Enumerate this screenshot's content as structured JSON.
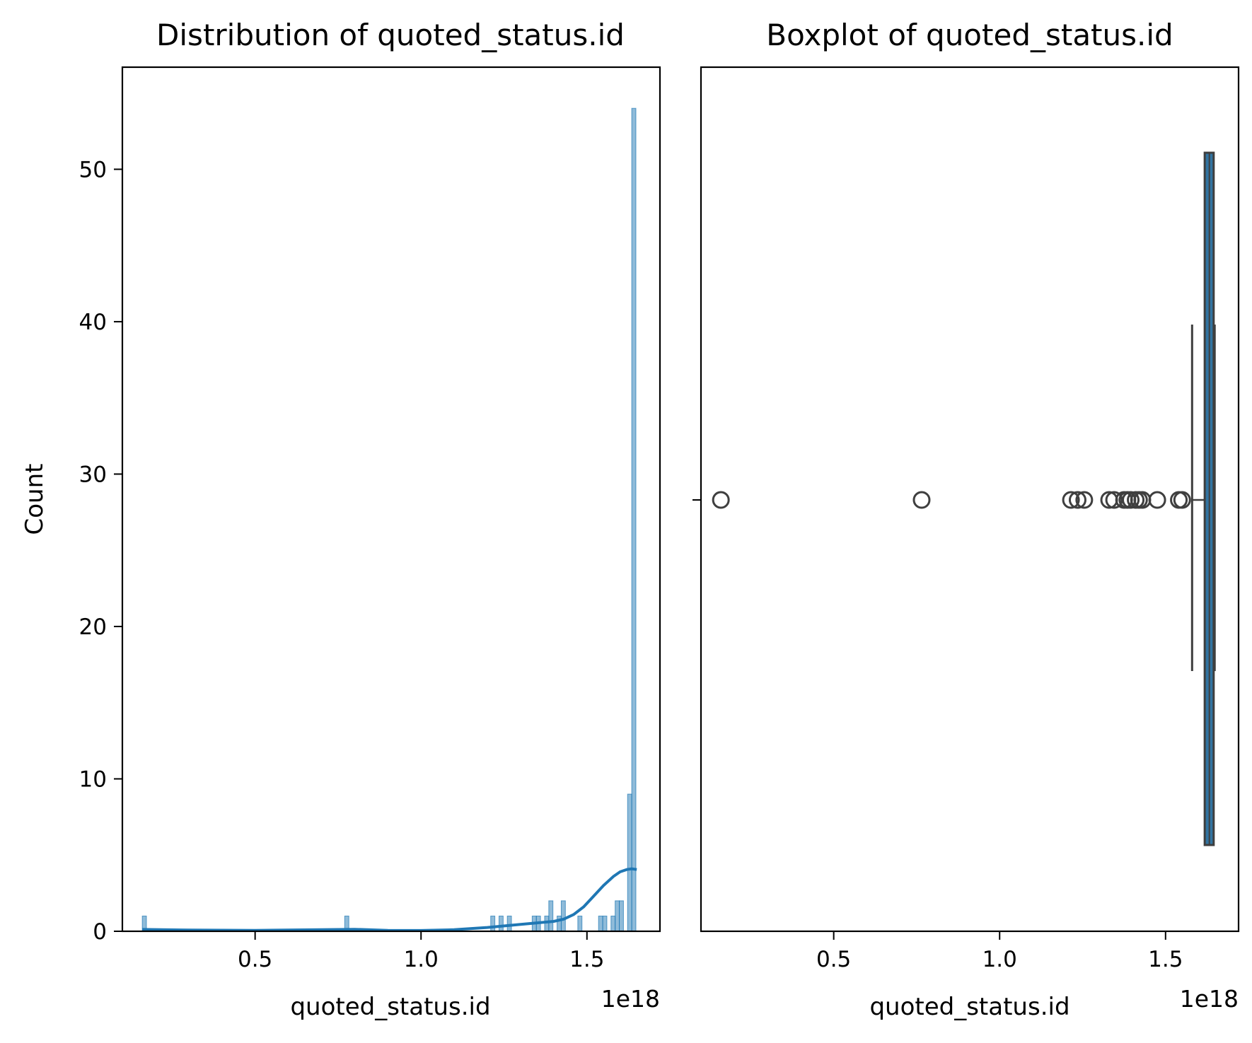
{
  "chart_data": [
    {
      "type": "histogram",
      "title": "Distribution of quoted_status.id",
      "xlabel": "quoted_status.id",
      "ylabel": "Count",
      "x_offset_label": "1e18",
      "xlim": [
        0.1,
        1.72
      ],
      "ylim": [
        0,
        56.7
      ],
      "xticks": [
        0.5,
        1.0,
        1.5
      ],
      "xtick_labels": [
        "0.5",
        "1.0",
        "1.5"
      ],
      "yticks": [
        0,
        10,
        20,
        30,
        40,
        50
      ],
      "ytick_labels": [
        "0",
        "10",
        "20",
        "30",
        "40",
        "50"
      ],
      "bar_color": "#1f77b4",
      "bin_width": 0.0125,
      "bins": [
        {
          "x": 0.16,
          "count": 1
        },
        {
          "x": 0.77,
          "count": 1
        },
        {
          "x": 1.21,
          "count": 1
        },
        {
          "x": 1.235,
          "count": 1
        },
        {
          "x": 1.26,
          "count": 1
        },
        {
          "x": 1.335,
          "count": 1
        },
        {
          "x": 1.3475,
          "count": 1
        },
        {
          "x": 1.3725,
          "count": 1
        },
        {
          "x": 1.385,
          "count": 2
        },
        {
          "x": 1.41,
          "count": 1
        },
        {
          "x": 1.4225,
          "count": 2
        },
        {
          "x": 1.4725,
          "count": 1
        },
        {
          "x": 1.535,
          "count": 1
        },
        {
          "x": 1.5475,
          "count": 1
        },
        {
          "x": 1.5725,
          "count": 1
        },
        {
          "x": 1.585,
          "count": 2
        },
        {
          "x": 1.5975,
          "count": 2
        },
        {
          "x": 1.6225,
          "count": 9
        },
        {
          "x": 1.635,
          "count": 54
        }
      ],
      "kde": {
        "color": "#1f77b4",
        "x": [
          0.16,
          0.3,
          0.5,
          0.7,
          0.8,
          0.9,
          1.0,
          1.1,
          1.2,
          1.3,
          1.35,
          1.4,
          1.43,
          1.46,
          1.49,
          1.52,
          1.55,
          1.58,
          1.6,
          1.62,
          1.635,
          1.65
        ],
        "y": [
          0.12,
          0.08,
          0.06,
          0.1,
          0.13,
          0.06,
          0.05,
          0.1,
          0.25,
          0.45,
          0.55,
          0.65,
          0.8,
          1.1,
          1.6,
          2.3,
          3.0,
          3.6,
          3.9,
          4.05,
          4.1,
          4.05
        ]
      }
    },
    {
      "type": "boxplot",
      "title": "Boxplot of quoted_status.id",
      "xlabel": "quoted_status.id",
      "x_offset_label": "1e18",
      "xlim": [
        0.1,
        1.72
      ],
      "xticks": [
        0.5,
        1.0,
        1.5
      ],
      "xtick_labels": [
        "0.5",
        "1.0",
        "1.5"
      ],
      "box_color": "#3274a1",
      "line_color": "#3f3f3f",
      "whisker_low": 1.58,
      "q1": 1.618,
      "median": 1.632,
      "q3": 1.645,
      "whisker_high": 1.648,
      "outliers": [
        0.16,
        0.765,
        1.215,
        1.235,
        1.255,
        1.33,
        1.345,
        1.375,
        1.385,
        1.395,
        1.41,
        1.42,
        1.43,
        1.475,
        1.54,
        1.55
      ]
    }
  ]
}
